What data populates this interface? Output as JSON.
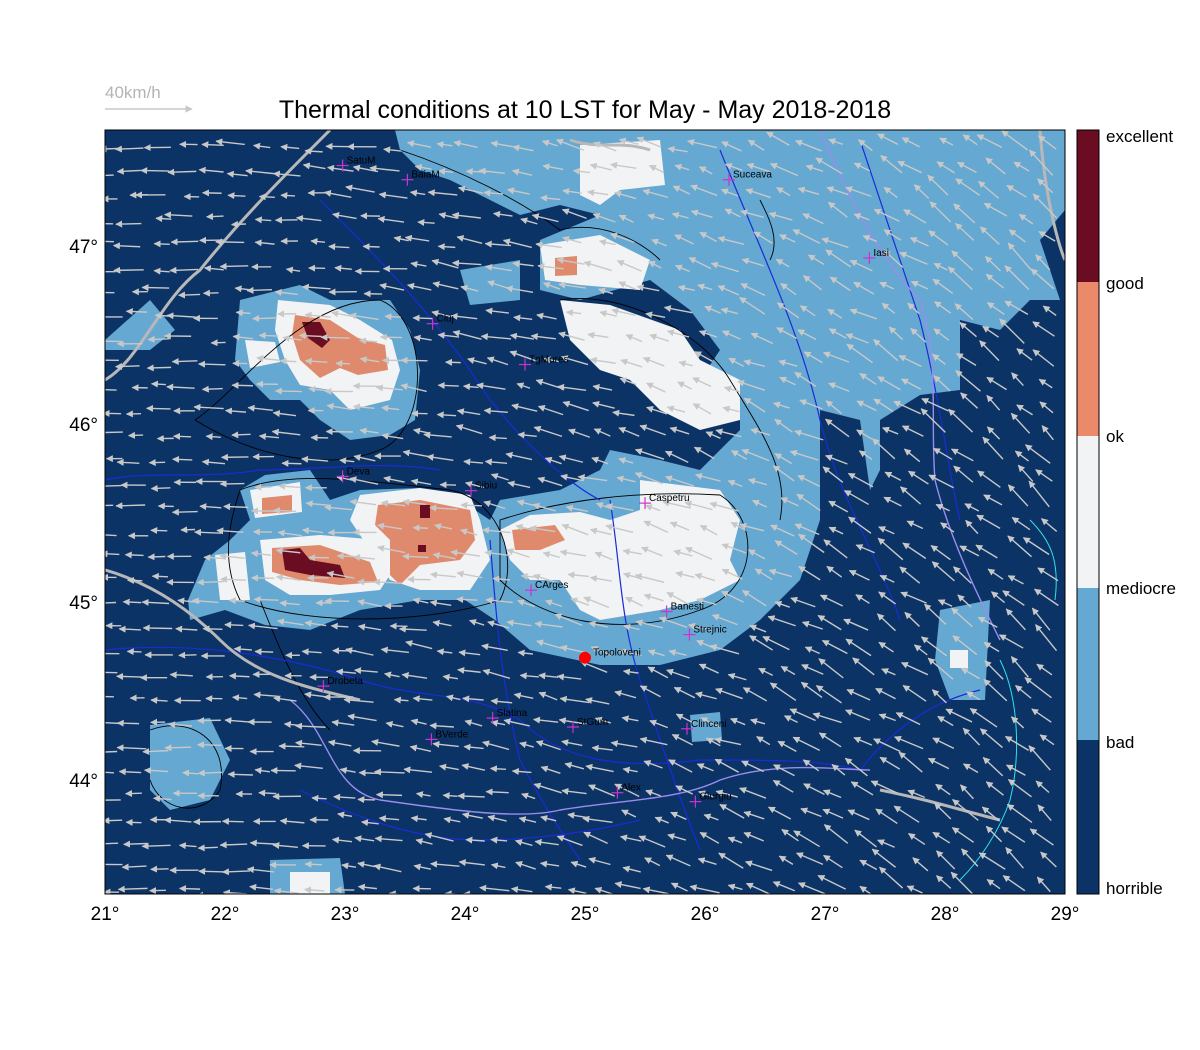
{
  "title": "Thermal conditions at 10 LST for May - May  2018-2018",
  "wind_scale_label": "40km/h",
  "colors": {
    "horrible": "#0b3366",
    "bad": "#65a8d1",
    "mediocre": "#f2f3f5",
    "ok": "#e08a6d",
    "good": "#ea8a6b",
    "excellent": "#6a0c22",
    "river": "#1a2cd8",
    "border": "#b8b8b8",
    "arrow": "#c8c8c8",
    "contour": "#000000",
    "marker": "#cc33cc",
    "site": "#ff0000"
  },
  "legend": {
    "labels": [
      "excellent",
      "good",
      "ok",
      "mediocre",
      "bad",
      "horrible"
    ]
  },
  "axes": {
    "lon_ticks": [
      "21°",
      "22°",
      "23°",
      "24°",
      "25°",
      "26°",
      "27°",
      "28°",
      "29°"
    ],
    "lat_ticks": [
      "47°",
      "46°",
      "45°",
      "44°"
    ],
    "lon_range": [
      21,
      29
    ],
    "lat_range": [
      43.35,
      47.65
    ]
  },
  "cities": [
    {
      "name": "SatuM",
      "lon": 22.98,
      "lat": 47.45
    },
    {
      "name": "BaiaM",
      "lon": 23.52,
      "lat": 47.37
    },
    {
      "name": "Suceava",
      "lon": 26.2,
      "lat": 47.37
    },
    {
      "name": "Iasi",
      "lon": 27.37,
      "lat": 46.93
    },
    {
      "name": "Cluj",
      "lon": 23.73,
      "lat": 46.56
    },
    {
      "name": "TgMures",
      "lon": 24.5,
      "lat": 46.33
    },
    {
      "name": "Deva",
      "lon": 22.98,
      "lat": 45.7
    },
    {
      "name": "Sibiu",
      "lon": 24.05,
      "lat": 45.62
    },
    {
      "name": "Caspetru",
      "lon": 25.5,
      "lat": 45.55
    },
    {
      "name": "CArges",
      "lon": 24.55,
      "lat": 45.06
    },
    {
      "name": "Banesti",
      "lon": 25.68,
      "lat": 44.94
    },
    {
      "name": "Strejnic",
      "lon": 25.87,
      "lat": 44.81
    },
    {
      "name": "Drobeta",
      "lon": 22.82,
      "lat": 44.52
    },
    {
      "name": "Slatina",
      "lon": 24.23,
      "lat": 44.34
    },
    {
      "name": "StGum",
      "lon": 24.9,
      "lat": 44.29
    },
    {
      "name": "Clinceni",
      "lon": 25.85,
      "lat": 44.28
    },
    {
      "name": "BVerde",
      "lon": 23.72,
      "lat": 44.22
    },
    {
      "name": "Alex",
      "lon": 25.27,
      "lat": 43.92
    },
    {
      "name": "Giurgiu",
      "lon": 25.92,
      "lat": 43.87
    }
  ],
  "site": {
    "name": "Topoloveni",
    "lon": 25.0,
    "lat": 44.68
  }
}
